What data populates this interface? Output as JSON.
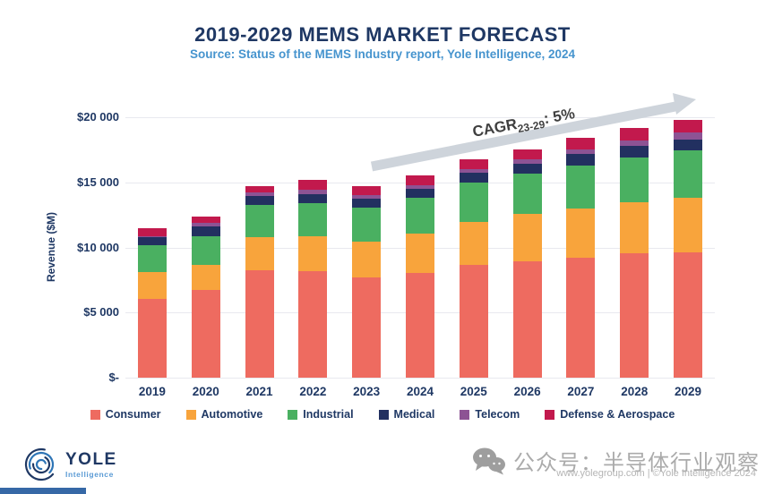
{
  "header": {
    "title": "2019-2029 MEMS MARKET FORECAST",
    "subtitle": "Source: Status of the MEMS Industry report, Yole Intelligence, 2024"
  },
  "chart_data": {
    "type": "bar",
    "stacked": true,
    "title": "2019-2029 MEMS MARKET FORECAST",
    "xlabel": "",
    "ylabel": "Revenue ($M)",
    "ylim": [
      0,
      20000
    ],
    "ytick_labels": [
      "$-",
      "$5 000",
      "$10 000",
      "$15 000",
      "$20 000"
    ],
    "grid": true,
    "legend_position": "bottom",
    "categories": [
      "2019",
      "2020",
      "2021",
      "2022",
      "2023",
      "2024",
      "2025",
      "2026",
      "2027",
      "2028",
      "2029"
    ],
    "series": [
      {
        "name": "Consumer",
        "color": "#EE6B60",
        "values": [
          6050,
          6740,
          8250,
          8190,
          7730,
          8070,
          8690,
          8920,
          9225,
          9520,
          9640
        ]
      },
      {
        "name": "Automotive",
        "color": "#F8A43C",
        "values": [
          2050,
          1910,
          2575,
          2645,
          2690,
          2990,
          3290,
          3635,
          3795,
          3955,
          4185
        ]
      },
      {
        "name": "Industrial",
        "color": "#4AB061",
        "values": [
          2050,
          2190,
          2415,
          2575,
          2645,
          2760,
          2990,
          3105,
          3265,
          3450,
          3615
        ]
      },
      {
        "name": "Medical",
        "color": "#223060",
        "values": [
          650,
          800,
          690,
          690,
          690,
          690,
          740,
          760,
          875,
          855,
          875
        ]
      },
      {
        "name": "Telecom",
        "color": "#8D5394",
        "values": [
          50,
          230,
          300,
          370,
          255,
          275,
          300,
          320,
          390,
          415,
          510
        ]
      },
      {
        "name": "Defense & Aerospace",
        "color": "#C2194D",
        "values": [
          620,
          530,
          510,
          690,
          670,
          760,
          760,
          760,
          875,
          985,
          985
        ]
      }
    ],
    "totals": [
      11470,
      12400,
      14740,
      15160,
      14680,
      15545,
      16770,
      17500,
      18425,
      19180,
      19810
    ],
    "annotation": {
      "prefix": "CAGR",
      "sub": "23-29",
      "suffix": ": 5%"
    }
  },
  "colors": {
    "title": "#1F3864",
    "subtitle": "#4694CE",
    "gridline": "#E8E9EF",
    "arrow": "#CED4DB"
  },
  "footer": {
    "logo_title": "YOLE",
    "logo_subtitle": "Intelligence",
    "watermark": "公众号：半导体行业观察",
    "copyright": "www.yolegroup.com | ©Yole Intelligence 2024"
  }
}
